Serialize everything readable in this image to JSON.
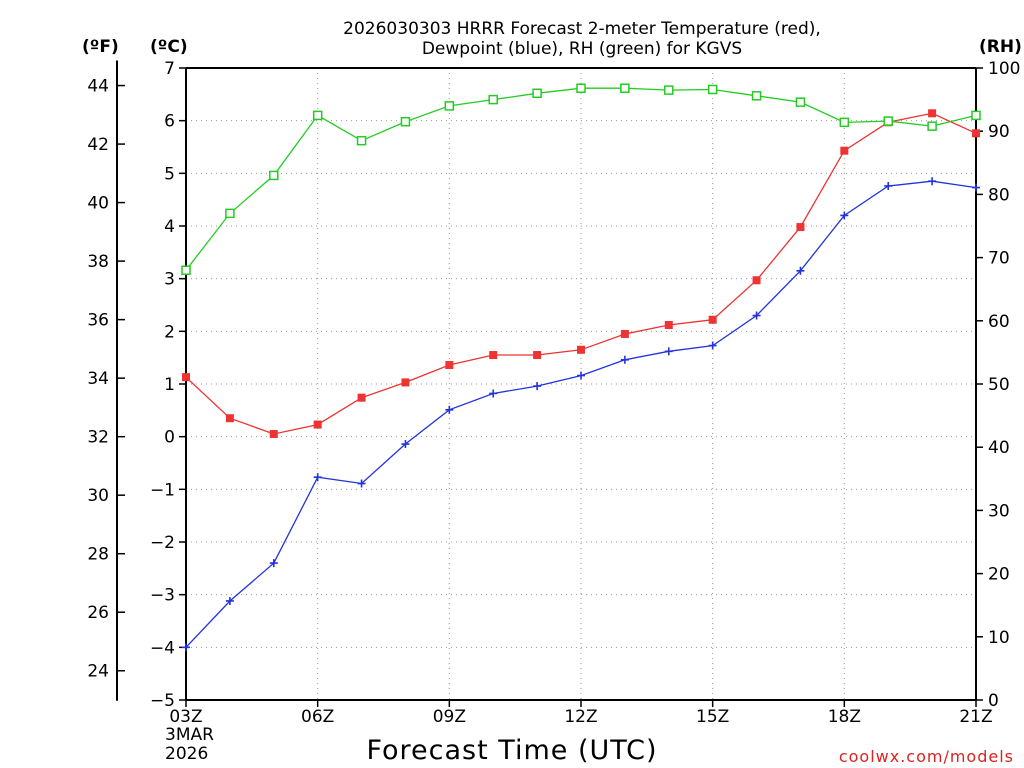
{
  "chart_data": {
    "type": "line",
    "title_line1": "2026030303 HRRR Forecast 2-meter Temperature (red),",
    "title_line2": "Dewpoint (blue), RH (green) for KGVS",
    "xlabel": "Forecast Time (UTC)",
    "credit": "coolwx.com/models",
    "unit_f": "(ºF)",
    "unit_c": "(ºC)",
    "unit_rh": "(RH)",
    "date_month": "3MAR",
    "date_year": "2026",
    "x_hours": [
      0,
      1,
      2,
      3,
      4,
      5,
      6,
      7,
      8,
      9,
      10,
      11,
      12,
      13,
      14,
      15,
      16,
      17,
      18
    ],
    "x_ticks": [
      {
        "hour": 0,
        "label": "03Z"
      },
      {
        "hour": 3,
        "label": "06Z"
      },
      {
        "hour": 6,
        "label": "09Z"
      },
      {
        "hour": 9,
        "label": "12Z"
      },
      {
        "hour": 12,
        "label": "15Z"
      },
      {
        "hour": 15,
        "label": "18Z"
      },
      {
        "hour": 18,
        "label": "21Z"
      }
    ],
    "celsius_axis": {
      "min": -5,
      "max": 7,
      "ticks": [
        "-5",
        "-4",
        "-3",
        "-2",
        "-1",
        "0",
        "1",
        "2",
        "3",
        "4",
        "5",
        "6",
        "7"
      ]
    },
    "fahrenheit_axis": {
      "ticks": [
        "24",
        "26",
        "28",
        "30",
        "32",
        "34",
        "36",
        "38",
        "40",
        "42",
        "44"
      ]
    },
    "rh_axis": {
      "min": 0,
      "max": 100,
      "ticks": [
        "0",
        "10",
        "20",
        "30",
        "40",
        "50",
        "60",
        "70",
        "80",
        "90",
        "100"
      ]
    },
    "series": [
      {
        "name": "Temperature",
        "units": "C",
        "color": "#ee3333",
        "marker": "filled-square",
        "values": [
          1.13,
          0.35,
          0.05,
          0.23,
          0.74,
          1.03,
          1.36,
          1.55,
          1.55,
          1.65,
          1.95,
          2.12,
          2.22,
          2.97,
          3.98,
          5.43,
          5.97,
          6.14,
          5.76
        ]
      },
      {
        "name": "Dewpoint",
        "units": "C",
        "color": "#2233dd",
        "marker": "plus",
        "values": [
          -4.0,
          -3.12,
          -2.4,
          -0.77,
          -0.89,
          -0.14,
          0.51,
          0.82,
          0.96,
          1.16,
          1.46,
          1.62,
          1.73,
          2.3,
          3.15,
          4.2,
          4.76,
          4.85,
          4.73
        ]
      },
      {
        "name": "RH",
        "units": "%",
        "color": "#22cc22",
        "marker": "open-square",
        "values": [
          68,
          77,
          83,
          92.5,
          88.5,
          91.5,
          94,
          95,
          96,
          96.8,
          96.8,
          96.5,
          96.6,
          95.6,
          94.6,
          91.4,
          91.6,
          90.8,
          92.5
        ]
      }
    ]
  }
}
